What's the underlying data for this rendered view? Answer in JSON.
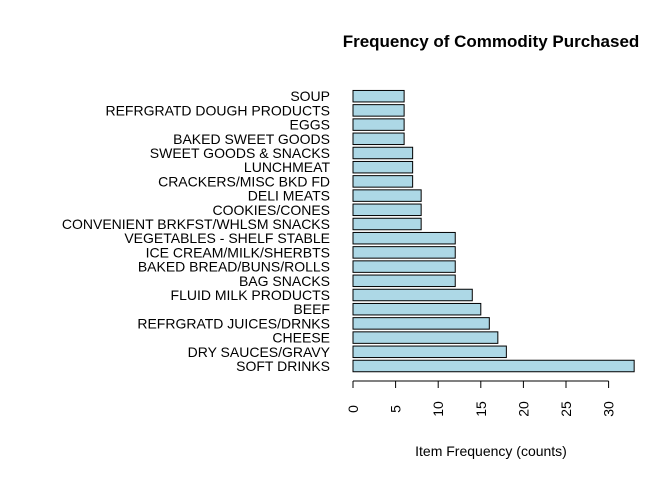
{
  "chart_data": {
    "type": "bar",
    "orientation": "horizontal",
    "title": "Frequency of Commodity Purchased",
    "xlabel": "Item Frequency (counts)",
    "ylabel": "",
    "xlim": [
      0,
      33
    ],
    "x_ticks": [
      0,
      5,
      10,
      15,
      20,
      25,
      30
    ],
    "bar_color": "#add8e6",
    "grid": false,
    "categories": [
      "SOFT DRINKS",
      "DRY SAUCES/GRAVY",
      "CHEESE",
      "REFRGRATD JUICES/DRNKS",
      "BEEF",
      "FLUID MILK PRODUCTS",
      "BAG SNACKS",
      "BAKED BREAD/BUNS/ROLLS",
      "ICE CREAM/MILK/SHERBTS",
      "VEGETABLES - SHELF STABLE",
      "CONVENIENT BRKFST/WHLSM SNACKS",
      "COOKIES/CONES",
      "DELI MEATS",
      "CRACKERS/MISC BKD FD",
      "LUNCHMEAT",
      "SWEET GOODS & SNACKS",
      "BAKED SWEET GOODS",
      "EGGS",
      "REFRGRATD DOUGH PRODUCTS",
      "SOUP"
    ],
    "values": [
      33,
      18,
      17,
      16,
      15,
      14,
      12,
      12,
      12,
      12,
      8,
      8,
      8,
      7,
      7,
      7,
      6,
      6,
      6,
      6
    ]
  }
}
